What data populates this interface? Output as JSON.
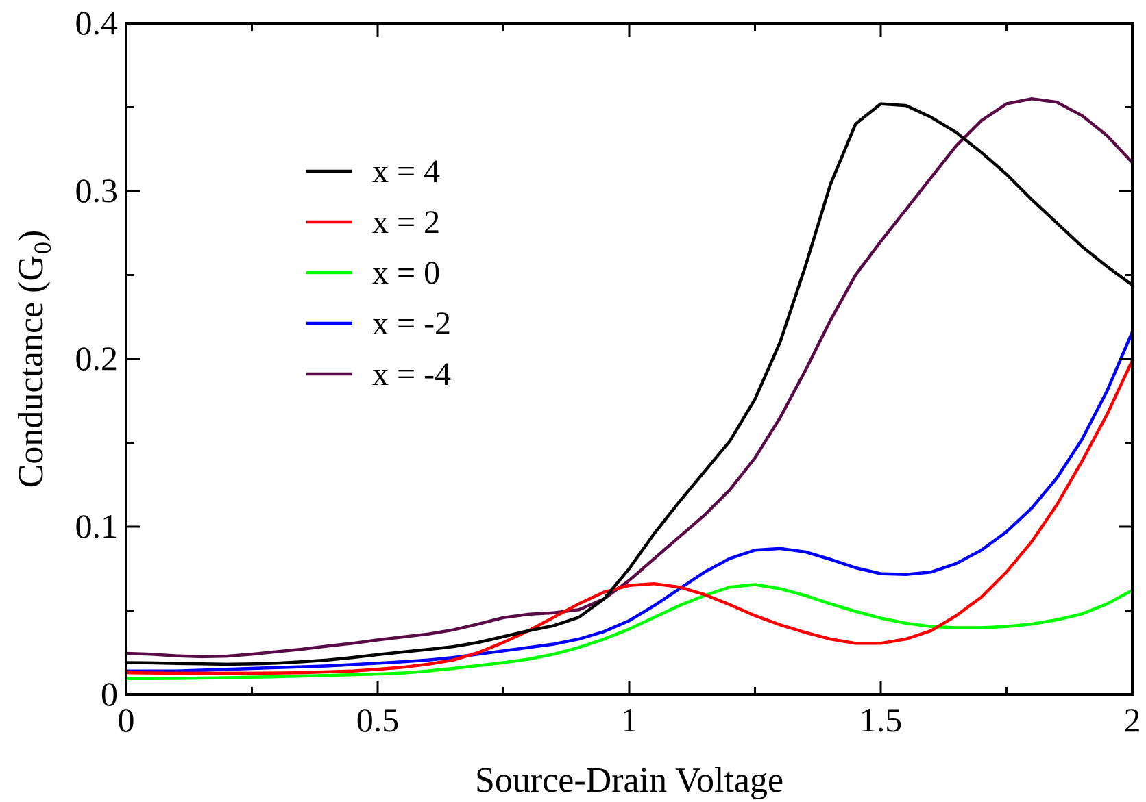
{
  "chart_data": {
    "type": "line",
    "xlabel": "Source-Drain Voltage",
    "ylabel_main": "Conductance (G",
    "ylabel_sub": "0",
    "ylabel_end": ")",
    "xlim": [
      0,
      2
    ],
    "ylim": [
      0,
      0.4
    ],
    "xticks": [
      0,
      0.5,
      1,
      1.5,
      2
    ],
    "xtick_labels": [
      "0",
      "0.5",
      "1",
      "1.5",
      "2"
    ],
    "xminor_step": 0.25,
    "yticks": [
      0,
      0.1,
      0.2,
      0.3,
      0.4
    ],
    "ytick_labels": [
      "0",
      "0.1",
      "0.2",
      "0.3",
      "0.4"
    ],
    "yminor_step": 0.05,
    "grid": false,
    "legend_position": "upper-left",
    "x": [
      0,
      0.05,
      0.1,
      0.15,
      0.2,
      0.25,
      0.3,
      0.35,
      0.4,
      0.45,
      0.5,
      0.55,
      0.6,
      0.65,
      0.7,
      0.75,
      0.8,
      0.85,
      0.9,
      0.95,
      1.0,
      1.05,
      1.1,
      1.15,
      1.2,
      1.25,
      1.3,
      1.35,
      1.4,
      1.45,
      1.5,
      1.55,
      1.6,
      1.65,
      1.7,
      1.75,
      1.8,
      1.85,
      1.9,
      1.95,
      2.0
    ],
    "series": [
      {
        "name": "x = 4",
        "color": "#000000",
        "values": [
          0.019,
          0.0188,
          0.0185,
          0.0183,
          0.018,
          0.0182,
          0.0187,
          0.0195,
          0.0205,
          0.022,
          0.0237,
          0.0253,
          0.0268,
          0.0285,
          0.031,
          0.0345,
          0.038,
          0.041,
          0.046,
          0.057,
          0.075,
          0.096,
          0.115,
          0.133,
          0.151,
          0.176,
          0.21,
          0.255,
          0.304,
          0.34,
          0.352,
          0.351,
          0.344,
          0.335,
          0.323,
          0.31,
          0.295,
          0.281,
          0.267,
          0.255,
          0.244
        ]
      },
      {
        "name": "x = 2",
        "color": "#ff0000",
        "values": [
          0.013,
          0.0128,
          0.0127,
          0.0127,
          0.0127,
          0.0127,
          0.0128,
          0.013,
          0.0135,
          0.014,
          0.015,
          0.0162,
          0.018,
          0.0205,
          0.025,
          0.031,
          0.038,
          0.046,
          0.054,
          0.061,
          0.065,
          0.066,
          0.064,
          0.0595,
          0.0535,
          0.047,
          0.0415,
          0.037,
          0.033,
          0.0305,
          0.0305,
          0.033,
          0.038,
          0.047,
          0.058,
          0.073,
          0.091,
          0.113,
          0.139,
          0.167,
          0.199
        ]
      },
      {
        "name": "x = 0",
        "color": "#00ff00",
        "values": [
          0.0095,
          0.0095,
          0.0096,
          0.0098,
          0.01,
          0.0103,
          0.0106,
          0.011,
          0.0114,
          0.0118,
          0.0122,
          0.0128,
          0.014,
          0.0155,
          0.0172,
          0.019,
          0.021,
          0.024,
          0.028,
          0.033,
          0.039,
          0.046,
          0.053,
          0.059,
          0.064,
          0.0655,
          0.063,
          0.059,
          0.054,
          0.0495,
          0.0455,
          0.0425,
          0.0405,
          0.0398,
          0.0398,
          0.0405,
          0.042,
          0.0445,
          0.048,
          0.054,
          0.062
        ]
      },
      {
        "name": "x = -2",
        "color": "#0000ff",
        "values": [
          0.014,
          0.014,
          0.014,
          0.0145,
          0.015,
          0.0155,
          0.016,
          0.0165,
          0.017,
          0.0178,
          0.0186,
          0.0195,
          0.0205,
          0.022,
          0.024,
          0.026,
          0.028,
          0.03,
          0.033,
          0.0375,
          0.044,
          0.053,
          0.063,
          0.073,
          0.081,
          0.086,
          0.087,
          0.085,
          0.0805,
          0.0755,
          0.072,
          0.0715,
          0.073,
          0.078,
          0.086,
          0.097,
          0.111,
          0.129,
          0.152,
          0.181,
          0.216
        ]
      },
      {
        "name": "x = -4",
        "color": "#5a0a47",
        "values": [
          0.0245,
          0.024,
          0.023,
          0.0225,
          0.0228,
          0.024,
          0.0255,
          0.027,
          0.0288,
          0.0305,
          0.0325,
          0.0343,
          0.036,
          0.0385,
          0.042,
          0.0458,
          0.0478,
          0.0487,
          0.0505,
          0.057,
          0.068,
          0.081,
          0.094,
          0.107,
          0.122,
          0.141,
          0.165,
          0.193,
          0.223,
          0.25,
          0.27,
          0.289,
          0.308,
          0.327,
          0.342,
          0.352,
          0.355,
          0.353,
          0.345,
          0.333,
          0.317
        ]
      }
    ]
  }
}
